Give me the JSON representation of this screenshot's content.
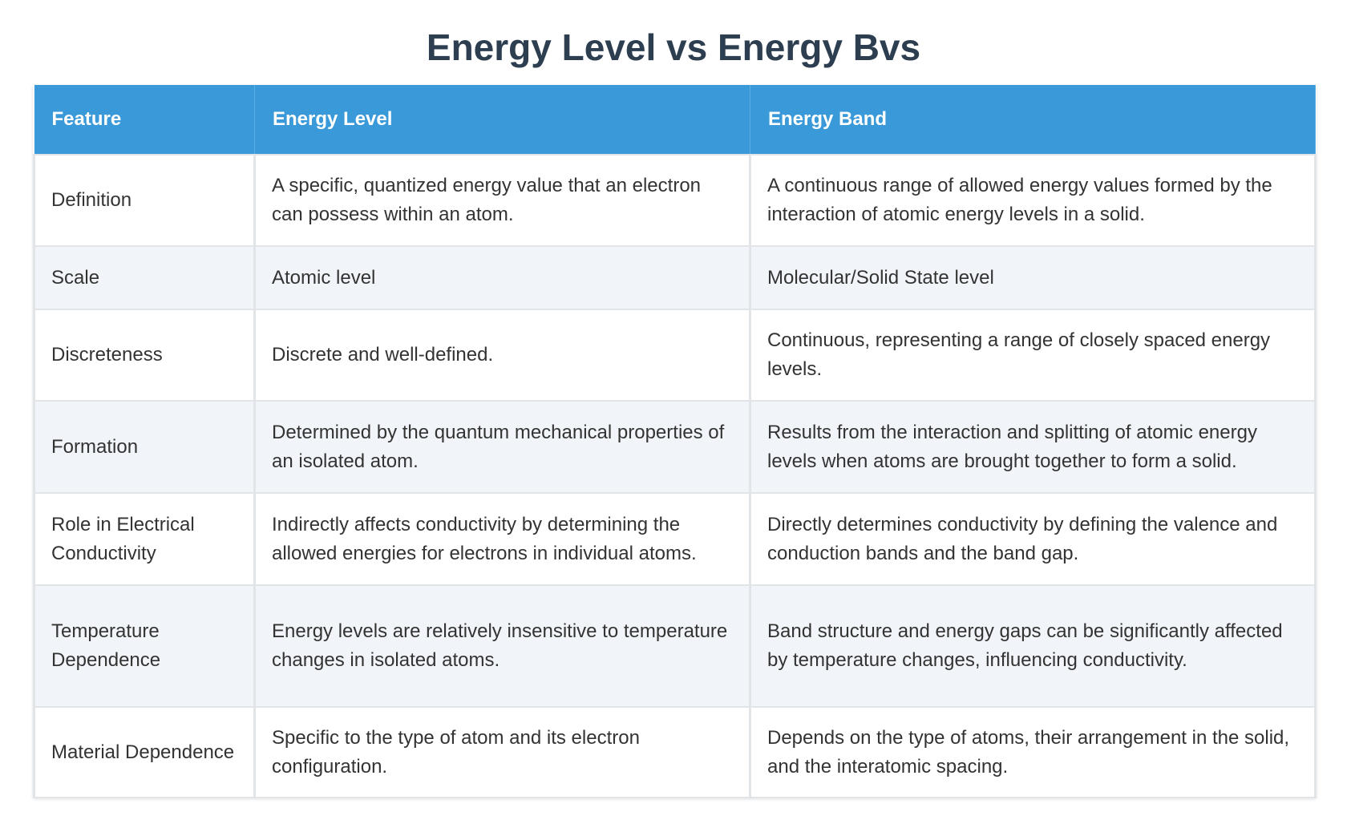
{
  "title": "Energy Level vs Energy Bvs",
  "table": {
    "headers": [
      "Feature",
      "Energy Level",
      "Energy Band"
    ],
    "rows": [
      [
        "Definition",
        "A specific, quantized energy value that an electron can possess within an atom.",
        "A continuous range of allowed energy values formed by the interaction of atomic energy levels in a solid."
      ],
      [
        "Scale",
        "Atomic level",
        "Molecular/Solid State level"
      ],
      [
        "Discreteness",
        "Discrete and well-defined.",
        "Continuous, representing a range of closely spaced energy levels."
      ],
      [
        "Formation",
        "Determined by the quantum mechanical properties of an isolated atom.",
        "Results from the interaction and splitting of atomic energy levels when atoms are brought together to form a solid."
      ],
      [
        "Role in Electrical Conductivity",
        "Indirectly affects conductivity by determining the allowed energies for electrons in individual atoms.",
        "Directly determines conductivity by defining the valence and conduction bands and the band gap."
      ],
      [
        "Temperature Dependence",
        "Energy levels are relatively insensitive to temperature changes in isolated atoms.",
        "Band structure and energy gaps can be significantly affected by temperature changes, influencing conductivity."
      ],
      [
        "Material Dependence",
        "Specific to the type of atom and its electron configuration.",
        "Depends on the type of atoms, their arrangement in the solid, and the interatomic spacing."
      ]
    ]
  }
}
